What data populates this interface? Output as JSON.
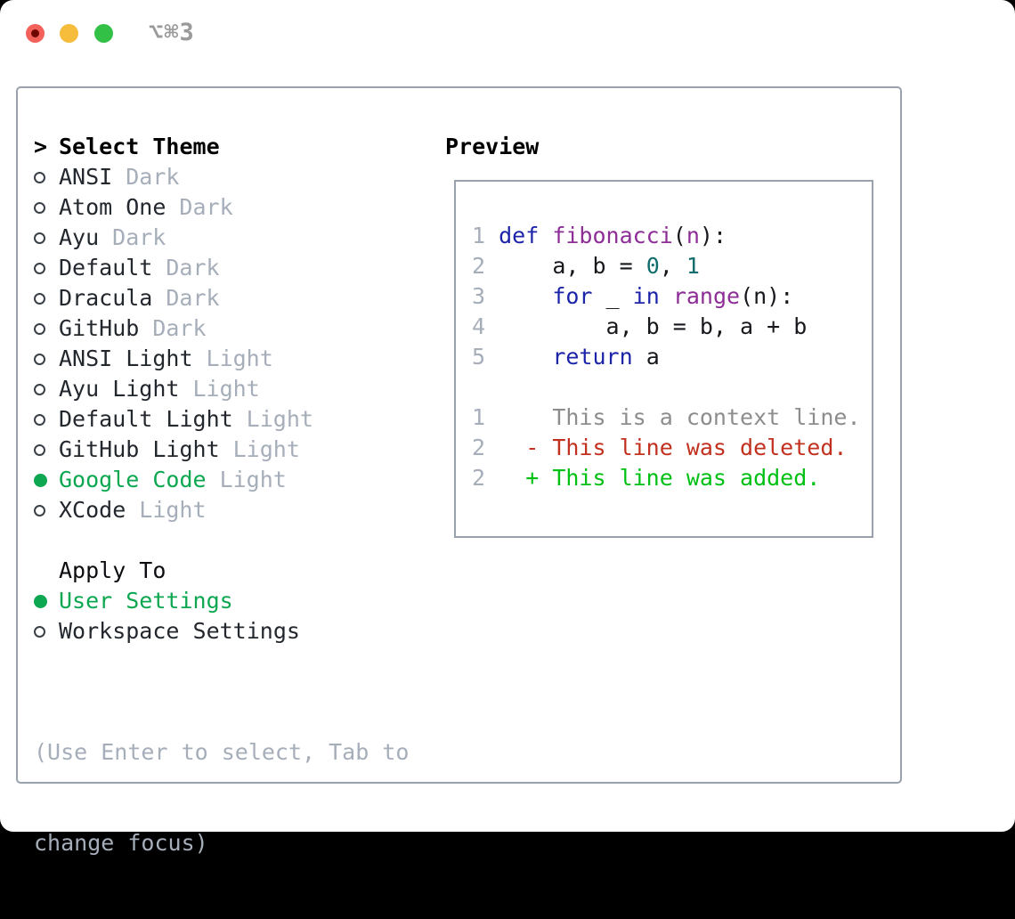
{
  "window": {
    "title_shortcut": "⌥⌘3"
  },
  "colors": {
    "selection_green": "#0ca750",
    "keyword_blue": "#1c24a9",
    "function_purple": "#8d2d96",
    "number_teal": "#0e6c6c",
    "diff_red": "#c2301f",
    "diff_added_green": "#00c013",
    "context_gray": "#8d8d8d",
    "muted_gray": "#a6aeba",
    "panel_border_gray": "#99a1ad",
    "traffic_red": "#f4605a",
    "traffic_yellow": "#f6bd3c",
    "traffic_green": "#32c146"
  },
  "theme_panel": {
    "header_marker": ">",
    "header": "Select Theme",
    "items": [
      {
        "name": "ANSI",
        "tag": "Dark",
        "selected": false
      },
      {
        "name": "Atom One",
        "tag": "Dark",
        "selected": false
      },
      {
        "name": "Ayu",
        "tag": "Dark",
        "selected": false
      },
      {
        "name": "Default",
        "tag": "Dark",
        "selected": false
      },
      {
        "name": "Dracula",
        "tag": "Dark",
        "selected": false
      },
      {
        "name": "GitHub",
        "tag": "Dark",
        "selected": false
      },
      {
        "name": "ANSI Light",
        "tag": "Light",
        "selected": false
      },
      {
        "name": "Ayu Light",
        "tag": "Light",
        "selected": false
      },
      {
        "name": "Default Light",
        "tag": "Light",
        "selected": false
      },
      {
        "name": "GitHub Light",
        "tag": "Light",
        "selected": false
      },
      {
        "name": "Google Code",
        "tag": "Light",
        "selected": true
      },
      {
        "name": "XCode",
        "tag": "Light",
        "selected": false
      }
    ],
    "apply_to": {
      "header": "Apply To",
      "options": [
        {
          "name": "User Settings",
          "selected": true
        },
        {
          "name": "Workspace Settings",
          "selected": false
        }
      ]
    },
    "hint_lines": [
      "(Use Enter to select, Tab to",
      "change focus)"
    ]
  },
  "preview": {
    "header": "Preview",
    "lines": [
      [
        [
          "lno",
          "1 "
        ],
        [
          "kw",
          "def"
        ],
        [
          "pln",
          " "
        ],
        [
          "fn",
          "fibonacci"
        ],
        [
          "pln",
          "("
        ],
        [
          "fn",
          "n"
        ],
        [
          "pln",
          "):"
        ]
      ],
      [
        [
          "lno",
          "2 "
        ],
        [
          "pln",
          "    a, b = "
        ],
        [
          "num",
          "0"
        ],
        [
          "pln",
          ", "
        ],
        [
          "num",
          "1"
        ]
      ],
      [
        [
          "lno",
          "3 "
        ],
        [
          "pln",
          "    "
        ],
        [
          "kw",
          "for"
        ],
        [
          "pln",
          " _ "
        ],
        [
          "kw",
          "in"
        ],
        [
          "pln",
          " "
        ],
        [
          "fn",
          "range"
        ],
        [
          "pln",
          "(n):"
        ]
      ],
      [
        [
          "lno",
          "4 "
        ],
        [
          "pln",
          "        a, b = b, a + b"
        ]
      ],
      [
        [
          "lno",
          "5 "
        ],
        [
          "pln",
          "    "
        ],
        [
          "kw",
          "return"
        ],
        [
          "pln",
          " a"
        ]
      ],
      [],
      [
        [
          "lno",
          "1 "
        ],
        [
          "ctx",
          "    This is a context line."
        ]
      ],
      [
        [
          "lno",
          "2 "
        ],
        [
          "del",
          "  - This line was deleted."
        ]
      ],
      [
        [
          "lno",
          "2 "
        ],
        [
          "add",
          "  + This line was added."
        ]
      ]
    ]
  }
}
